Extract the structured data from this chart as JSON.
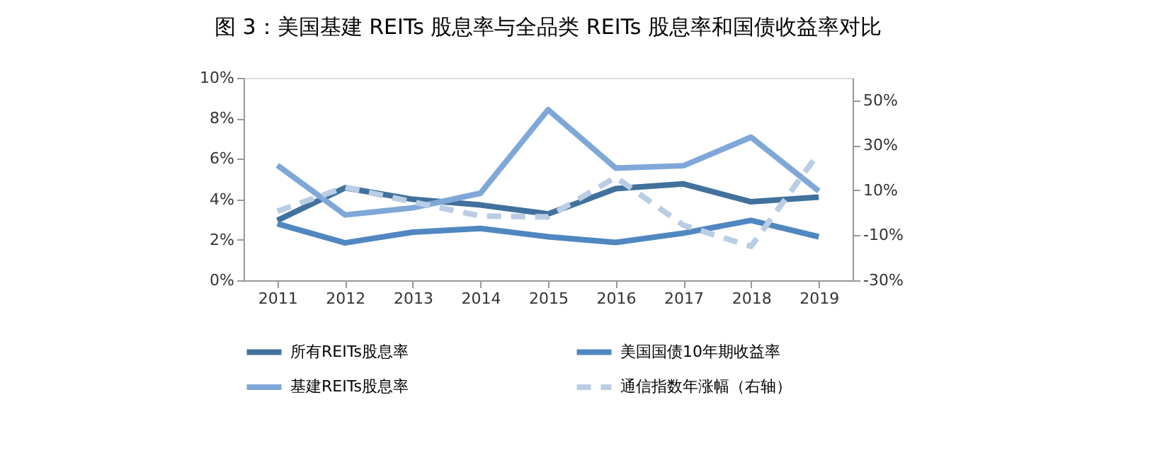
{
  "chart_data": {
    "type": "line",
    "title": "图 3：美国基建 REITs 股息率与全品类 REITs 股息率和国债收益率对比",
    "categories": [
      "2011",
      "2012",
      "2013",
      "2014",
      "2015",
      "2016",
      "2017",
      "2018",
      "2019"
    ],
    "series": [
      {
        "name": "所有REITs股息率",
        "color": "#41719c",
        "values": [
          2.96,
          4.57,
          4.0,
          3.72,
          3.28,
          4.53,
          4.76,
          3.88,
          4.11
        ]
      },
      {
        "name": "美国国债10年期收益率",
        "color": "#5087c1",
        "values": [
          2.79,
          1.85,
          2.38,
          2.56,
          2.15,
          1.87,
          2.33,
          2.96,
          2.15
        ]
      },
      {
        "name": "基建REITs股息率",
        "color": "#7fa7d8",
        "values": [
          5.68,
          3.23,
          3.58,
          4.3,
          8.43,
          5.54,
          5.66,
          7.07,
          4.41
        ]
      },
      {
        "name": "通信指数年涨幅（右轴）",
        "color": "#b9cde5",
        "axis": "y2",
        "line_style": "dashed",
        "values": [
          0.7,
          11.4,
          4.8,
          -1.4,
          -1.8,
          15.8,
          -5.5,
          -14.9,
          26.6
        ]
      }
    ],
    "ylim": [
      0,
      10
    ],
    "yticks": [
      {
        "value": 0,
        "label": "0%"
      },
      {
        "value": 2,
        "label": "2%"
      },
      {
        "value": 4,
        "label": "4%"
      },
      {
        "value": 6,
        "label": "6%"
      },
      {
        "value": 8,
        "label": "8%"
      },
      {
        "value": 10,
        "label": "10%"
      }
    ],
    "y2lim": [
      -30,
      60
    ],
    "y2ticks": [
      {
        "value": -30,
        "label": "-30%"
      },
      {
        "value": -10,
        "label": "-10%"
      },
      {
        "value": 10,
        "label": "10%"
      },
      {
        "value": 30,
        "label": "30%"
      },
      {
        "value": 50,
        "label": "50%"
      }
    ],
    "grid": false,
    "legend": "bottom",
    "marker": "none",
    "line_style": "solid"
  }
}
